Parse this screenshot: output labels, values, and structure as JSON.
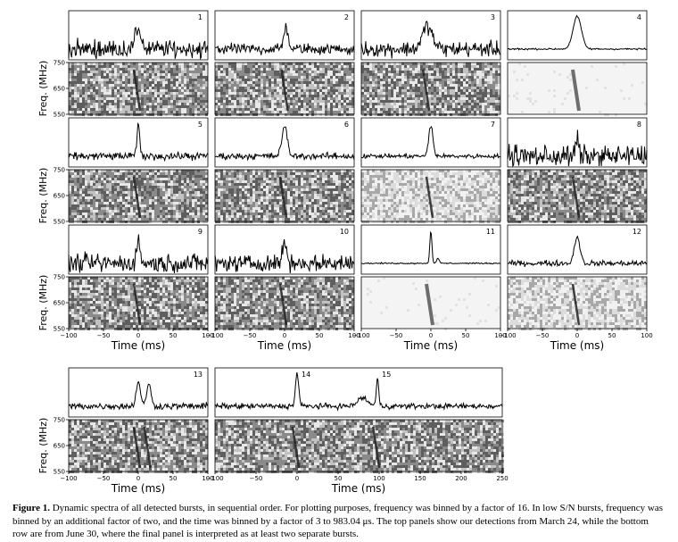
{
  "chart_data": {
    "type": "line",
    "subtype": "dynamic-spectra-grid",
    "xlabel": "Time (ms)",
    "ylabel": "Freq. (MHz)",
    "y_ticks": [
      "750",
      "650",
      "550"
    ],
    "x_ticks_short": [
      "−100",
      "−50",
      "0",
      "50",
      "100"
    ],
    "x_ticks_long": [
      "−100",
      "−50",
      "0",
      "50",
      "100",
      "150",
      "200",
      "250"
    ],
    "xlim_short": [
      -100,
      100
    ],
    "xlim_long": [
      -100,
      250
    ],
    "ylim_freq": [
      550,
      750
    ],
    "bursts": [
      {
        "label": "1",
        "peaks": [
          {
            "t": 0,
            "w": 4,
            "h": 0.55
          }
        ],
        "noise": 0.16,
        "spec": "noisy"
      },
      {
        "label": "2",
        "peaks": [
          {
            "t": 2,
            "w": 3,
            "h": 0.6
          }
        ],
        "noise": 0.1,
        "spec": "noisy"
      },
      {
        "label": "3",
        "peaks": [
          {
            "t": -5,
            "w": 7,
            "h": 0.6
          }
        ],
        "noise": 0.14,
        "spec": "noisy"
      },
      {
        "label": "4",
        "peaks": [
          {
            "t": 0,
            "w": 6,
            "h": 0.85
          }
        ],
        "noise": 0.015,
        "spec": "clean"
      },
      {
        "label": "5",
        "peaks": [
          {
            "t": 0,
            "w": 2,
            "h": 0.8
          }
        ],
        "noise": 0.07,
        "spec": "noisy"
      },
      {
        "label": "6",
        "peaks": [
          {
            "t": 0,
            "w": 4,
            "h": 0.75
          }
        ],
        "noise": 0.06,
        "spec": "noisy"
      },
      {
        "label": "7",
        "peaks": [
          {
            "t": 0,
            "w": 3,
            "h": 0.8
          }
        ],
        "noise": 0.04,
        "spec": "light"
      },
      {
        "label": "8",
        "peaks": [
          {
            "t": 0,
            "w": 2,
            "h": 0.45
          }
        ],
        "noise": 0.2,
        "spec": "noisy"
      },
      {
        "label": "9",
        "peaks": [
          {
            "t": 0,
            "w": 3,
            "h": 0.5
          }
        ],
        "noise": 0.17,
        "spec": "noisy"
      },
      {
        "label": "10",
        "peaks": [
          {
            "t": 0,
            "w": 3,
            "h": 0.55
          }
        ],
        "noise": 0.15,
        "spec": "noisy"
      },
      {
        "label": "11",
        "peaks": [
          {
            "t": 0,
            "w": 1.5,
            "h": 0.85
          },
          {
            "t": 10,
            "w": 2,
            "h": 0.12
          }
        ],
        "noise": 0.012,
        "spec": "clean"
      },
      {
        "label": "12",
        "peaks": [
          {
            "t": 0,
            "w": 4,
            "h": 0.7
          }
        ],
        "noise": 0.05,
        "spec": "light"
      },
      {
        "label": "13",
        "peaks": [
          {
            "t": 0,
            "w": 3,
            "h": 0.65
          },
          {
            "t": 15,
            "w": 3,
            "h": 0.6
          }
        ],
        "noise": 0.06,
        "spec": "noisy"
      },
      {
        "label": "14",
        "peaks": [
          {
            "t": 0,
            "w": 2,
            "h": 0.85
          }
        ],
        "noise": 0.05,
        "spec": "noisy"
      },
      {
        "label": "15",
        "peaks": [
          {
            "t": 98,
            "w": 1.5,
            "h": 0.7
          },
          {
            "t": 80,
            "w": 6,
            "h": 0.22
          }
        ],
        "noise": 0.05,
        "spec": "noisy"
      }
    ]
  },
  "caption": {
    "label": "Figure 1.",
    "text": " Dynamic spectra of all detected bursts, in sequential order. For plotting purposes, frequency was binned by a factor of 16. In low S/N bursts, frequency was binned by an additional factor of two, and the time was binned by a factor of 3 to 983.04 μs. The top panels show our detections from March 24, while the bottom row are from June 30, where the final panel is interpreted as at least two separate bursts."
  }
}
